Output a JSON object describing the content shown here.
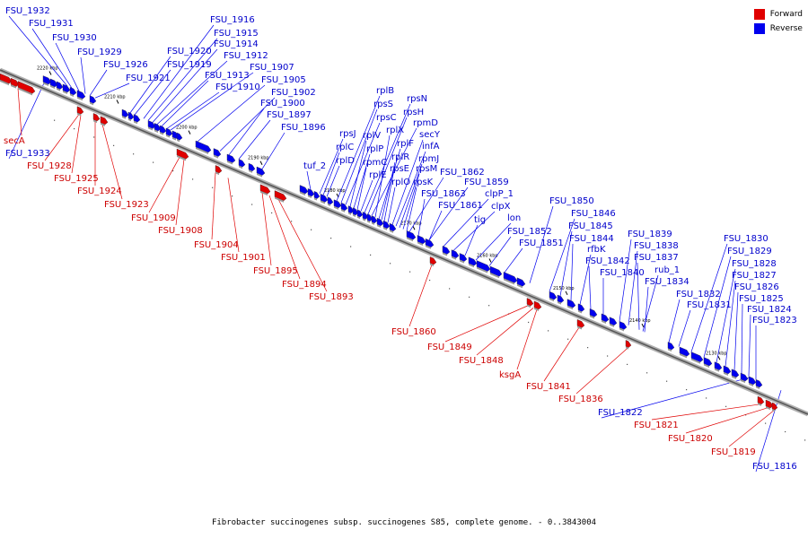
{
  "colors": {
    "forward": "#e00000",
    "reverse": "#0000ee",
    "backbone": "#808080",
    "forward_label": "#cc0000",
    "reverse_label": "#0000cc"
  },
  "legend": {
    "forward": "Forward",
    "reverse": "Reverse"
  },
  "caption": "Fibrobacter succinogenes subsp. succinogenes S85, complete genome. - 0..3843004",
  "scale_ticks": [
    "2220 kbp",
    "2210 kbp",
    "2200 kbp",
    "2190 kbp",
    "2180 kbp",
    "2170 kbp",
    "2160 kbp",
    "2150 kbp",
    "2140 kbp",
    "2130 kbp"
  ],
  "reverse_labels": [
    "FSU_1932",
    "FSU_1931",
    "FSU_1930",
    "FSU_1929",
    "FSU_1926",
    "FSU_1921",
    "FSU_1920",
    "FSU_1919",
    "FSU_1916",
    "FSU_1915",
    "FSU_1914",
    "FSU_1912",
    "FSU_1913",
    "FSU_1910",
    "FSU_1907",
    "FSU_1905",
    "FSU_1902",
    "FSU_1900",
    "FSU_1897",
    "FSU_1896",
    "FSU_1933",
    "tuf_2",
    "rpsJ",
    "rplC",
    "rplD",
    "rplB",
    "rpsS",
    "rpsC",
    "rplV",
    "rplP",
    "rpmC",
    "rplE",
    "rpsN",
    "rpsH",
    "rpmD",
    "rplX",
    "rplF",
    "rplR",
    "rpsE",
    "rplO",
    "secY",
    "infA",
    "rpmJ",
    "rpsM",
    "rpsK",
    "FSU_1862",
    "FSU_1863",
    "FSU_1859",
    "FSU_1861",
    "clpP_1",
    "clpX",
    "tig",
    "lon",
    "FSU_1852",
    "FSU_1851",
    "FSU_1850",
    "FSU_1846",
    "FSU_1845",
    "FSU_1844",
    "rfbK",
    "FSU_1842",
    "FSU_1840",
    "FSU_1839",
    "FSU_1838",
    "FSU_1837",
    "rub_1",
    "FSU_1834",
    "FSU_1832",
    "FSU_1831",
    "FSU_1830",
    "FSU_1829",
    "FSU_1828",
    "FSU_1827",
    "FSU_1826",
    "FSU_1825",
    "FSU_1824",
    "FSU_1823",
    "FSU_1822",
    "FSU_1816"
  ],
  "forward_labels": [
    "secA",
    "FSU_1928",
    "FSU_1925",
    "FSU_1924",
    "FSU_1923",
    "FSU_1909",
    "FSU_1908",
    "FSU_1904",
    "FSU_1901",
    "FSU_1895",
    "FSU_1894",
    "FSU_1893",
    "FSU_1860",
    "FSU_1849",
    "FSU_1848",
    "ksgA",
    "FSU_1841",
    "FSU_1836",
    "FSU_1821",
    "FSU_1820",
    "FSU_1819"
  ]
}
